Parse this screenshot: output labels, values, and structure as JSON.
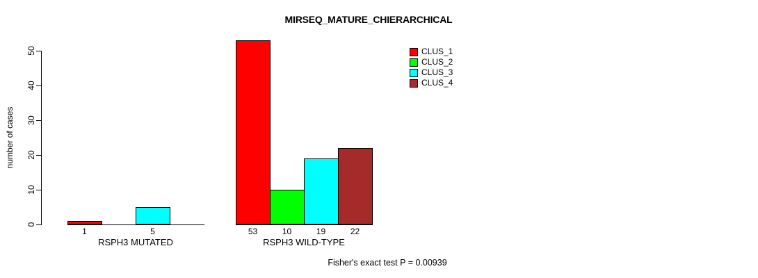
{
  "chart_data": {
    "type": "bar",
    "title": "MIRSEQ_MATURE_CHIERARCHICAL",
    "ylabel": "number of cases",
    "xlabel": "",
    "ylim": [
      0,
      50
    ],
    "yticks": [
      0,
      10,
      20,
      30,
      40,
      50
    ],
    "grid": false,
    "legend_position": "top-right",
    "categories": [
      "RSPH3 MUTATED",
      "RSPH3 WILD-TYPE"
    ],
    "series": [
      {
        "name": "CLUS_1",
        "color": "#FF0000",
        "values": [
          1,
          53
        ]
      },
      {
        "name": "CLUS_2",
        "color": "#00FF00",
        "values": [
          0,
          10
        ]
      },
      {
        "name": "CLUS_3",
        "color": "#00FFFF",
        "values": [
          5,
          19
        ]
      },
      {
        "name": "CLUS_4",
        "color": "#A52A2A",
        "values": [
          0,
          22
        ]
      }
    ],
    "bar_value_labels": [
      [
        "1",
        "",
        "5",
        ""
      ],
      [
        "53",
        "10",
        "19",
        "22"
      ]
    ],
    "annotation": "Fisher's exact test P = 0.00939",
    "colors": {
      "background": "#FFFFFF",
      "axis": "#000000",
      "text": "#000000",
      "bar_border": "#000000"
    }
  }
}
